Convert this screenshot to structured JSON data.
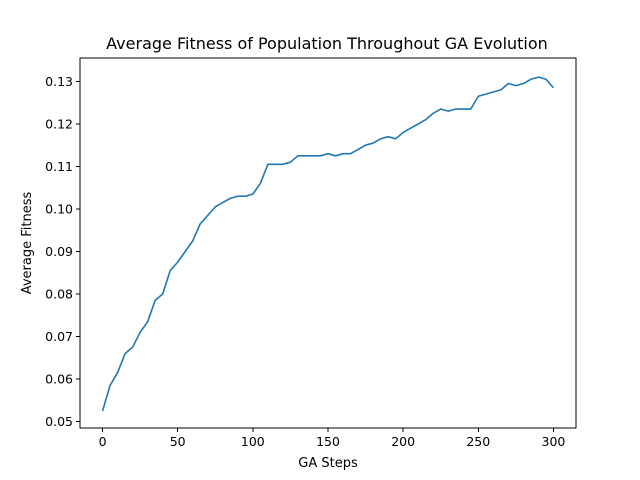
{
  "chart_data": {
    "type": "line",
    "title": "Average Fitness of Population Throughout GA Evolution",
    "xlabel": "GA Steps",
    "ylabel": "Average Fitness",
    "xlim": [
      -15,
      315
    ],
    "ylim": [
      0.0485,
      0.1355
    ],
    "xticks": [
      0,
      50,
      100,
      150,
      200,
      250,
      300
    ],
    "yticks": [
      0.05,
      0.06,
      0.07,
      0.08,
      0.09,
      0.1,
      0.11,
      0.12,
      0.13
    ],
    "ytick_labels": [
      "0.05",
      "0.06",
      "0.07",
      "0.08",
      "0.09",
      "0.10",
      "0.11",
      "0.12",
      "0.13"
    ],
    "grid": false,
    "legend": "none",
    "series": [
      {
        "color": "#1f77b4",
        "x": [
          0,
          5,
          10,
          15,
          20,
          25,
          30,
          35,
          40,
          45,
          50,
          55,
          60,
          65,
          70,
          75,
          80,
          85,
          90,
          95,
          100,
          105,
          110,
          115,
          120,
          125,
          130,
          135,
          140,
          145,
          150,
          155,
          160,
          165,
          170,
          175,
          180,
          185,
          190,
          195,
          200,
          205,
          210,
          215,
          220,
          225,
          230,
          235,
          240,
          245,
          250,
          255,
          260,
          265,
          270,
          275,
          280,
          285,
          290,
          295,
          300
        ],
        "y": [
          0.0525,
          0.0585,
          0.0615,
          0.066,
          0.0675,
          0.071,
          0.0735,
          0.0785,
          0.08,
          0.0855,
          0.0875,
          0.09,
          0.0925,
          0.0965,
          0.0985,
          0.1005,
          0.1015,
          0.1025,
          0.103,
          0.103,
          0.1035,
          0.106,
          0.1105,
          0.1105,
          0.1105,
          0.111,
          0.1125,
          0.1125,
          0.1125,
          0.1125,
          0.113,
          0.1125,
          0.113,
          0.113,
          0.114,
          0.115,
          0.1155,
          0.1165,
          0.117,
          0.1165,
          0.118,
          0.119,
          0.12,
          0.121,
          0.1225,
          0.1235,
          0.123,
          0.1235,
          0.1235,
          0.1235,
          0.1265,
          0.127,
          0.1275,
          0.128,
          0.1295,
          0.129,
          0.1295,
          0.1305,
          0.131,
          0.1305,
          0.1285
        ]
      }
    ]
  }
}
